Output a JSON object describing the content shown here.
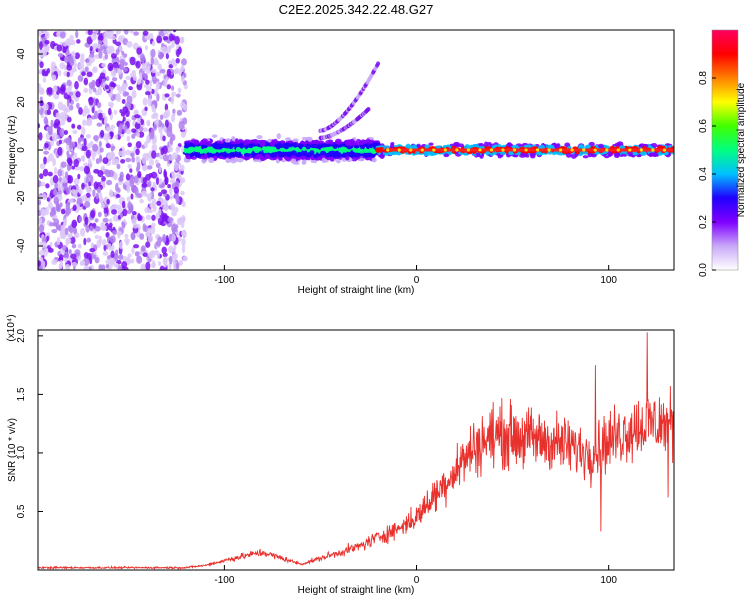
{
  "title": "C2E2.2025.342.22.48.G27",
  "chart_data": [
    {
      "type": "heatmap",
      "name": "spectrogram",
      "xlabel": "Height of straight line (km)",
      "ylabel": "Frequency (Hz)",
      "xlim": [
        -197,
        134
      ],
      "ylim": [
        -50,
        50
      ],
      "xticks": [
        -100,
        0,
        100
      ],
      "xtick_labels": [
        "-100",
        "0",
        "100"
      ],
      "yticks": [
        -40,
        -20,
        0,
        20,
        40
      ],
      "ytick_labels": [
        "-40",
        "-20",
        "0",
        "20",
        "40"
      ],
      "colorbar": {
        "label": "Normalized spectral amplitude",
        "range": [
          0,
          1
        ],
        "ticks": [
          0.0,
          0.2,
          0.4,
          0.6,
          0.8
        ],
        "tick_labels": [
          "0.0",
          "0.2",
          "0.4",
          "0.6",
          "0.8"
        ],
        "colormap": [
          "#ffffff",
          "#c8a8f8",
          "#8000ff",
          "#2000ff",
          "#00c0ff",
          "#00ff80",
          "#40ff00",
          "#ffff00",
          "#ff8000",
          "#ff0000",
          "#ff0060"
        ]
      },
      "regions": [
        {
          "name": "noise-band",
          "x_range": [
            -197,
            -120
          ],
          "freq_range": [
            -50,
            50
          ],
          "amplitude": 0.1
        },
        {
          "name": "signal-onset",
          "x_range": [
            -120,
            -20
          ],
          "freq_center": 0,
          "freq_halfwidth": 6,
          "amplitude": 0.3
        },
        {
          "name": "harmonic-branch-1",
          "x_range": [
            -50,
            -20
          ],
          "freq_start": 8,
          "freq_end": 36,
          "amplitude": 0.1
        },
        {
          "name": "harmonic-branch-2",
          "x_range": [
            -50,
            -25
          ],
          "freq_start": 5,
          "freq_end": 17,
          "amplitude": 0.15
        },
        {
          "name": "steady-tone",
          "x_range": [
            -20,
            134
          ],
          "freq_center": 0,
          "freq_halfwidth": 3,
          "amplitude": 0.9
        }
      ]
    },
    {
      "type": "line",
      "name": "snr",
      "xlabel": "Height of straight line (km)",
      "ylabel": "SNR (10 * v/v)",
      "y_multiplier": "(x10⁴)",
      "xlim": [
        -197,
        134
      ],
      "ylim": [
        0,
        2.05
      ],
      "xticks": [
        -100,
        0,
        100
      ],
      "xtick_labels": [
        "-100",
        "0",
        "100"
      ],
      "yticks": [
        0.5,
        1.0,
        1.5,
        2.0
      ],
      "ytick_labels": [
        "0.5",
        "1.0",
        "1.5",
        "2.0"
      ],
      "color": "#e8302c",
      "trend": {
        "x": [
          -197,
          -150,
          -120,
          -110,
          -100,
          -90,
          -80,
          -70,
          -60,
          -50,
          -40,
          -30,
          -20,
          -10,
          0,
          10,
          20,
          30,
          40,
          50,
          60,
          70,
          80,
          90,
          100,
          110,
          120,
          134
        ],
        "y": [
          0.02,
          0.02,
          0.02,
          0.04,
          0.08,
          0.12,
          0.15,
          0.1,
          0.05,
          0.1,
          0.15,
          0.2,
          0.28,
          0.35,
          0.45,
          0.65,
          0.85,
          1.05,
          1.15,
          1.15,
          1.12,
          1.1,
          1.05,
          1.0,
          1.1,
          1.2,
          1.25,
          1.25
        ]
      },
      "notable_points": [
        {
          "x": 96,
          "y": 0.33
        },
        {
          "x": 93,
          "y": 1.75
        },
        {
          "x": 120,
          "y": 2.03
        },
        {
          "x": 131,
          "y": 0.62
        }
      ]
    }
  ]
}
